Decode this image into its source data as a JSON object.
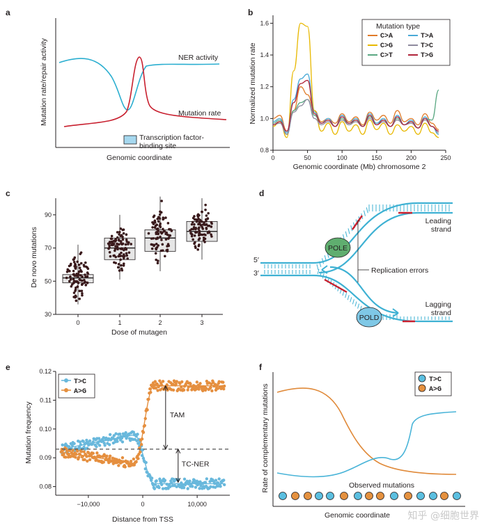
{
  "panels": {
    "a": {
      "label": "a",
      "xlabel": "Genomic coordinate",
      "ylabel": "Mutation rate/repair activity",
      "ner_label": "NER activity",
      "mut_label": "Mutation rate",
      "tf_label_line1": "Transcription factor-",
      "tf_label_line2": "binding site",
      "colors": {
        "ner": "#2aaed0",
        "mut": "#c8202f",
        "tf": "#a6d8ef"
      }
    },
    "b": {
      "label": "b",
      "xlabel": "Genomic coordinate (Mb) chromosome 2",
      "ylabel": "Normalized mutation rate",
      "legend_title": "Mutation type"
    },
    "c": {
      "label": "c",
      "xlabel": "Dose of mutagen",
      "ylabel": "De novo mutations"
    },
    "d": {
      "label": "d",
      "leading": "Leading",
      "leading2": "strand",
      "lagging": "Lagging",
      "lagging2": "strand",
      "pole": "POLE",
      "pold": "POLD",
      "errors": "Replication errors",
      "five": "5′",
      "three": "3′"
    },
    "e": {
      "label": "e",
      "xlabel": "Distance from TSS",
      "ylabel": "Mutation frequency",
      "tam": "TAM",
      "tcner": "TC-NER"
    },
    "f": {
      "label": "f",
      "ylabel": "Rate of complementary mutations",
      "xlabel": "Genomic coordinate",
      "observed": "Observed mutations",
      "dots": [
        "T>C",
        "A>G",
        "A>G",
        "T>C",
        "T>C",
        "A>G",
        "T>C",
        "A>G",
        "A>G",
        "T>C",
        "A>G",
        "T>C",
        "T>C",
        "A>G",
        "T>C"
      ]
    }
  },
  "watermark": "知乎 @细胞世界",
  "chart_data": [
    {
      "panel": "a",
      "type": "line",
      "title": "",
      "xlabel": "Genomic coordinate",
      "ylabel": "Mutation rate/repair activity",
      "series": [
        {
          "name": "NER activity"
        },
        {
          "name": "Mutation rate"
        }
      ],
      "annotations": [
        "Transcription factor-binding site"
      ]
    },
    {
      "panel": "b",
      "type": "line",
      "title": "",
      "xlabel": "Genomic coordinate (Mb) chromosome 2",
      "ylabel": "Normalized mutation rate",
      "xlim": [
        0,
        250
      ],
      "ylim": [
        0.8,
        1.65
      ],
      "xticks": [
        0,
        50,
        100,
        150,
        200,
        250
      ],
      "yticks": [
        0.8,
        1.0,
        1.2,
        1.4,
        1.6
      ],
      "legend_title": "Mutation type",
      "x": [
        0,
        10,
        20,
        30,
        40,
        50,
        60,
        70,
        80,
        90,
        100,
        110,
        120,
        130,
        140,
        150,
        160,
        170,
        180,
        190,
        200,
        210,
        220,
        230,
        240
      ],
      "series": [
        {
          "name": "C>A",
          "color": "#e07a28",
          "values": [
            1.0,
            1.02,
            0.92,
            1.05,
            1.2,
            1.15,
            1.05,
            0.98,
            1.0,
            0.97,
            1.03,
            0.98,
            1.01,
            0.96,
            1.04,
            0.99,
            1.02,
            0.97,
            1.05,
            0.98,
            1.0,
            0.96,
            1.03,
            0.97,
            0.93
          ]
        },
        {
          "name": "C>G",
          "color": "#e8b800",
          "values": [
            0.95,
            0.98,
            0.88,
            1.3,
            1.6,
            1.58,
            1.05,
            0.92,
            0.97,
            0.9,
            0.98,
            0.92,
            0.96,
            0.9,
            0.99,
            0.93,
            0.97,
            0.9,
            0.96,
            0.92,
            0.95,
            0.9,
            0.97,
            0.91,
            0.88
          ]
        },
        {
          "name": "C>T",
          "color": "#5aa882",
          "values": [
            0.97,
            0.99,
            0.9,
            1.05,
            1.1,
            1.12,
            1.02,
            0.97,
            0.99,
            0.95,
            1.0,
            0.96,
            0.99,
            0.95,
            1.01,
            0.97,
            0.99,
            0.95,
            1.0,
            0.96,
            0.98,
            0.94,
            1.0,
            0.99,
            1.18
          ]
        },
        {
          "name": "T>A",
          "color": "#49a9d6",
          "values": [
            0.98,
            1.0,
            0.91,
            1.12,
            1.25,
            1.28,
            1.04,
            0.97,
            1.0,
            0.95,
            1.02,
            0.97,
            1.0,
            0.95,
            1.03,
            0.97,
            1.0,
            0.95,
            1.02,
            0.96,
            0.99,
            0.94,
            1.01,
            0.95,
            0.9
          ]
        },
        {
          "name": "T>C",
          "color": "#8e8a9e",
          "values": [
            0.96,
            0.97,
            0.9,
            1.04,
            1.08,
            1.12,
            1.0,
            0.96,
            0.98,
            0.95,
            0.99,
            0.96,
            0.98,
            0.95,
            1.0,
            0.96,
            0.98,
            0.95,
            0.99,
            0.96,
            0.97,
            0.94,
            0.99,
            0.95,
            0.91
          ]
        },
        {
          "name": "T>G",
          "color": "#b0243a",
          "values": [
            0.96,
            0.98,
            0.92,
            1.1,
            1.22,
            1.24,
            1.03,
            0.97,
            0.99,
            0.95,
            1.01,
            0.97,
            0.99,
            0.95,
            1.02,
            0.96,
            0.99,
            0.95,
            1.01,
            0.96,
            0.98,
            0.94,
            1.0,
            0.95,
            0.92
          ]
        }
      ]
    },
    {
      "panel": "c",
      "type": "box",
      "title": "",
      "xlabel": "Dose of mutagen",
      "ylabel": "De novo mutations",
      "categories": [
        "0",
        "1",
        "2",
        "3"
      ],
      "yticks": [
        30,
        50,
        70,
        90
      ],
      "ylim": [
        30,
        100
      ],
      "boxes": [
        {
          "q1": 49,
          "median": 52,
          "q3": 54,
          "min": 36,
          "max": 72
        },
        {
          "q1": 63,
          "median": 70,
          "q3": 76,
          "min": 51,
          "max": 90
        },
        {
          "q1": 68,
          "median": 76,
          "q3": 81,
          "min": 56,
          "max": 101
        },
        {
          "q1": 74,
          "median": 80,
          "q3": 86,
          "min": 63,
          "max": 100
        }
      ]
    },
    {
      "panel": "e",
      "type": "scatter",
      "title": "",
      "xlabel": "Distance from TSS",
      "ylabel": "Mutation frequency",
      "xlim": [
        -16000,
        16000
      ],
      "ylim": [
        0.077,
        0.12
      ],
      "xticks": [
        -10000,
        0,
        10000
      ],
      "xtick_labels": [
        "−10,000",
        "0",
        "10,000"
      ],
      "yticks": [
        0.08,
        0.09,
        0.1,
        0.11,
        0.12
      ],
      "baseline": 0.093,
      "series": [
        {
          "name": "T>C",
          "color": "#69b8dc",
          "left_start": 0.093,
          "left_end": 0.098,
          "right": 0.081
        },
        {
          "name": "A>G",
          "color": "#e58f3f",
          "left_start": 0.092,
          "left_end": 0.088,
          "right": 0.115
        }
      ],
      "annotations": [
        "TAM",
        "TC-NER"
      ]
    },
    {
      "panel": "f",
      "type": "line",
      "title": "",
      "xlabel": "Genomic coordinate",
      "ylabel": "Rate of complementary mutations",
      "series": [
        {
          "name": "T>C",
          "color": "#49b4d8"
        },
        {
          "name": "A>G",
          "color": "#e08a3a"
        }
      ],
      "legend": [
        "T>C",
        "A>G"
      ]
    }
  ]
}
